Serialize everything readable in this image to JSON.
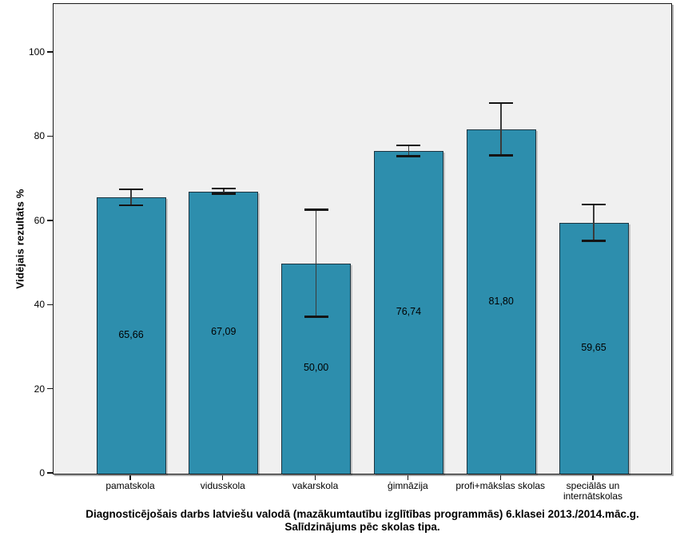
{
  "chart_data": {
    "type": "bar",
    "title_lines": [
      "Diagnosticējošais darbs latviešu valodā (mazākumtautību izglītības programmās) 6.klasei 2013./2014.māc.g.",
      "Salīdzinājums pēc skolas tipa."
    ],
    "ylabel": "Vidējais rezultāts %",
    "xlabel": "",
    "categories": [
      "pamatskola",
      "vidusskola",
      "vakarskola",
      "ģimnāzija",
      "profi+mākslas skolas",
      "speciālās un\ninternātskolas"
    ],
    "values": [
      65.66,
      67.09,
      50.0,
      76.74,
      81.8,
      59.65
    ],
    "value_labels": [
      "65,66",
      "67,09",
      "50,00",
      "76,74",
      "81,80",
      "59,65"
    ],
    "error_low": [
      63.8,
      66.5,
      37.3,
      75.5,
      75.6,
      55.3
    ],
    "error_high": [
      67.6,
      67.8,
      62.7,
      78.0,
      88.1,
      64.0
    ],
    "yticks": [
      0,
      20,
      40,
      60,
      80,
      100
    ],
    "ylim": [
      0,
      111.6
    ],
    "grid": false,
    "legend": "none",
    "colors": {
      "bar_fill": "#2d8ead",
      "bar_border": "#1c3440",
      "plot_bg": "#f0f0f0",
      "frame_border": "#1a1a1a",
      "error_bar": "#141414",
      "text": "#000000"
    }
  }
}
